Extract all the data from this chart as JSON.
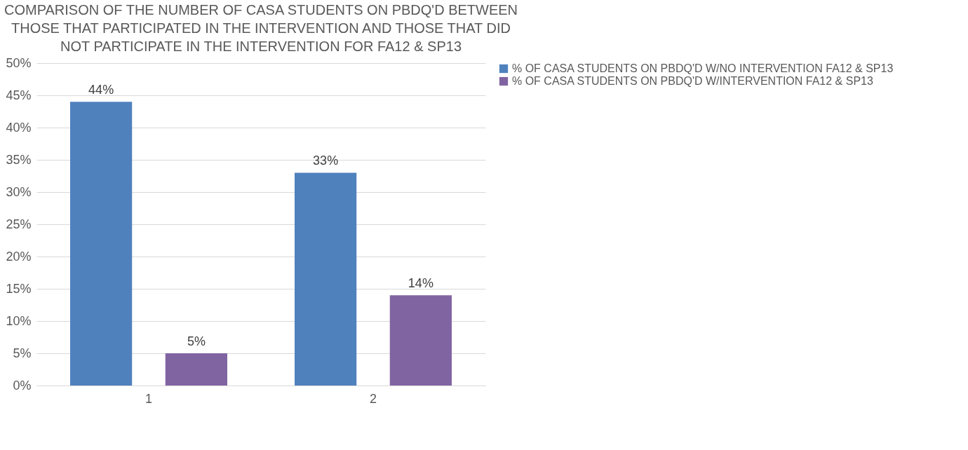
{
  "chart_data": {
    "type": "bar",
    "title": "COMPARISON OF THE NUMBER OF CASA STUDENTS ON PBDQ'D BETWEEN THOSE THAT PARTICIPATED IN THE INTERVENTION AND THOSE THAT DID NOT PARTICIPATE IN THE INTERVENTION FOR FA12 & SP13",
    "categories": [
      "1",
      "2"
    ],
    "series": [
      {
        "name": "% OF CASA STUDENTS ON PBDQ'D W/NO INTERVENTION FA12 & SP13",
        "color": "#4f81bd",
        "values": [
          44,
          33
        ],
        "value_labels": [
          "44%",
          "33%"
        ]
      },
      {
        "name": "% OF CASA STUDENTS ON PBDQ'D W/INTERVENTION FA12 & SP13",
        "color": "#8064a2",
        "values": [
          5,
          14
        ],
        "value_labels": [
          "5%",
          "14%"
        ]
      }
    ],
    "ylim": [
      0,
      50
    ],
    "yticks": [
      {
        "value": 0,
        "label": "0%"
      },
      {
        "value": 5,
        "label": "5%"
      },
      {
        "value": 10,
        "label": "10%"
      },
      {
        "value": 15,
        "label": "15%"
      },
      {
        "value": 20,
        "label": "20%"
      },
      {
        "value": 25,
        "label": "25%"
      },
      {
        "value": 30,
        "label": "30%"
      },
      {
        "value": 35,
        "label": "35%"
      },
      {
        "value": 40,
        "label": "40%"
      },
      {
        "value": 45,
        "label": "45%"
      },
      {
        "value": 50,
        "label": "50%"
      }
    ],
    "grid": "y",
    "legend": "right"
  }
}
